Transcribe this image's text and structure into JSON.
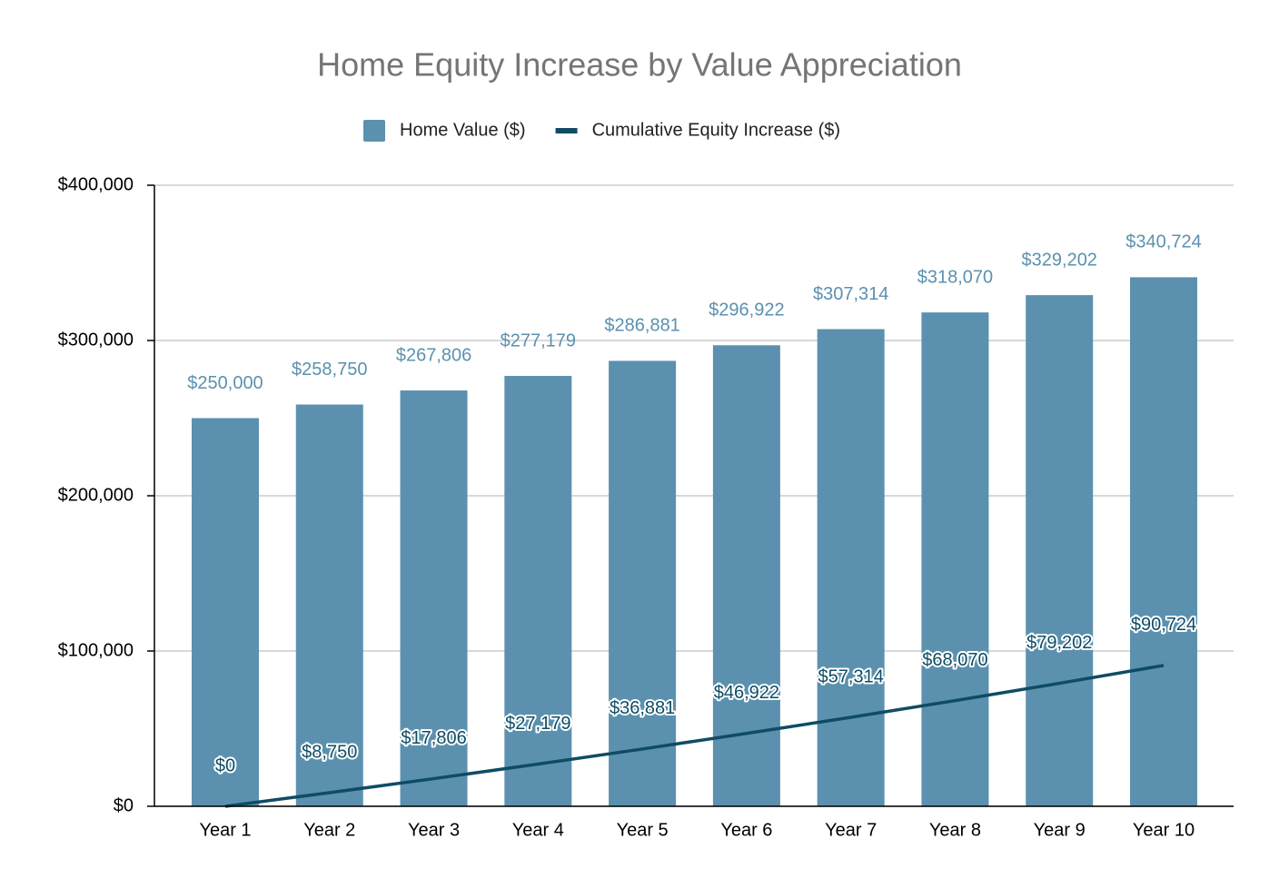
{
  "chart_data": {
    "type": "combo",
    "title": "Home Equity Increase by Value Appreciation",
    "categories": [
      "Year 1",
      "Year 2",
      "Year 3",
      "Year 4",
      "Year 5",
      "Year 6",
      "Year 7",
      "Year 8",
      "Year 9",
      "Year 10"
    ],
    "series": [
      {
        "name": "Home Value ($)",
        "type": "bar",
        "color": "#5b91af",
        "values": [
          250000,
          258750,
          267806,
          277179,
          286881,
          296922,
          307314,
          318070,
          329202,
          340724
        ],
        "value_labels": [
          "$250,000",
          "$258,750",
          "$267,806",
          "$277,179",
          "$286,881",
          "$296,922",
          "$307,314",
          "$318,070",
          "$329,202",
          "$340,724"
        ]
      },
      {
        "name": "Cumulative Equity Increase ($)",
        "type": "line",
        "color": "#0f4c64",
        "values": [
          0,
          8750,
          17806,
          27179,
          36881,
          46922,
          57314,
          68070,
          79202,
          90724
        ],
        "value_labels": [
          "$0",
          "$8,750",
          "$17,806",
          "$27,179",
          "$36,881",
          "$46,922",
          "$57,314",
          "$68,070",
          "$79,202",
          "$90,724"
        ]
      }
    ],
    "ylim": [
      0,
      400000
    ],
    "yticks": [
      {
        "value": 0,
        "label": "$0"
      },
      {
        "value": 100000,
        "label": "$100,000"
      },
      {
        "value": 200000,
        "label": "$200,000"
      },
      {
        "value": 300000,
        "label": "$300,000"
      },
      {
        "value": 400000,
        "label": "$400,000"
      }
    ],
    "grid": true,
    "legend": "top"
  }
}
